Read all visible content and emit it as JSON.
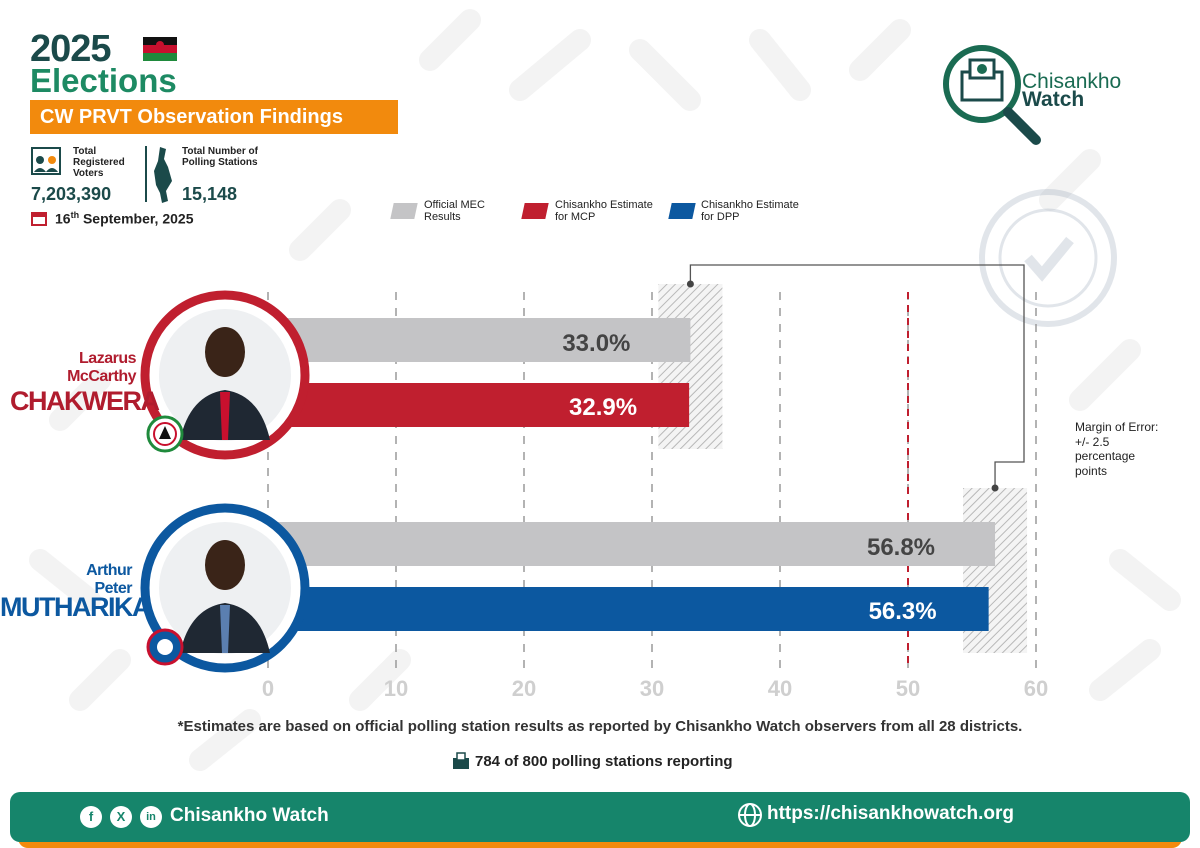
{
  "header": {
    "year": "2025",
    "title": "Elections",
    "banner": "CW PRVT Observation Findings"
  },
  "stats": {
    "voters_label": "Total Registered Voters",
    "voters_value": "7,203,390",
    "stations_label": "Total Number of Polling Stations",
    "stations_value": "15,148",
    "date_day": "16",
    "date_suffix": "th",
    "date_rest": " September, 2025"
  },
  "brand": {
    "name_line1": "Chisankho",
    "name_line2": "Watch"
  },
  "legend": [
    {
      "label": "Official MEC Results",
      "color": "#c4c4c6"
    },
    {
      "label": "Chisankho Estimate for MCP",
      "color": "#c01f2f"
    },
    {
      "label": "Chisankho Estimate for DPP",
      "color": "#0c58a0"
    }
  ],
  "candidates": [
    {
      "first": "Lazarus",
      "middle": "McCarthy",
      "last": "CHAKWERA",
      "party": "MCP",
      "ring_color": "#c01f2f",
      "last_color": "#b01c2e",
      "first_color": "#b01c2e"
    },
    {
      "first": "Arthur",
      "middle": "Peter",
      "last": "MUTHARIKA",
      "party": "DPP",
      "ring_color": "#0c58a0",
      "last_color": "#0c58a0",
      "first_color": "#0c58a0"
    }
  ],
  "chart_data": {
    "type": "bar",
    "orientation": "horizontal",
    "categories": [
      "Lazarus McCarthy CHAKWERA",
      "Arthur Peter MUTHARIKA"
    ],
    "series": [
      {
        "name": "Official MEC Results",
        "values": [
          33.0,
          56.8
        ],
        "labels": [
          "33.0%",
          "56.8%"
        ],
        "color": "#c4c4c6"
      },
      {
        "name": "Chisankho Estimate",
        "values": [
          32.9,
          56.3
        ],
        "labels": [
          "32.9%",
          "56.3%"
        ],
        "colors": [
          "#c01f2f",
          "#0c58a0"
        ]
      }
    ],
    "xticks": [
      "0",
      "10",
      "20",
      "30",
      "40",
      "50",
      "60"
    ],
    "xlim": [
      0,
      60
    ],
    "threshold": 50,
    "margin_of_error": 2.5,
    "margin_label": "Margin of Error: +/- 2.5 percentage points"
  },
  "footer": {
    "note": "*Estimates are based on official polling station results as reported by Chisankho Watch observers from all 28 districts.",
    "reporting": "784 of 800 polling stations reporting",
    "org": "Chisankho Watch",
    "url": "https://chisankhowatch.org",
    "social": [
      "f",
      "X",
      "in"
    ]
  }
}
